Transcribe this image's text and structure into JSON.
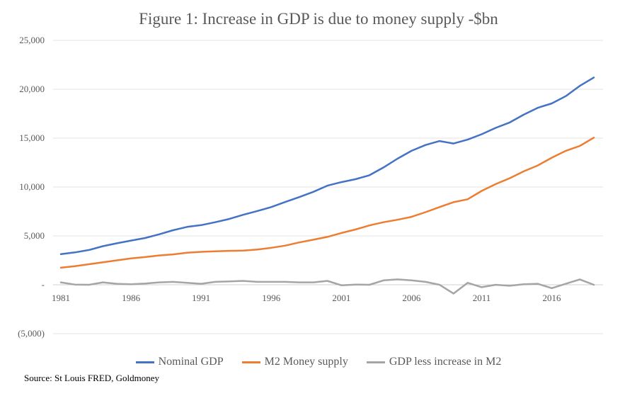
{
  "chart_data": {
    "type": "line",
    "title": "Figure 1: Increase in GDP is due to money supply -$bn",
    "xlabel": "",
    "ylabel": "",
    "ylim": [
      -5000,
      25000
    ],
    "yticks": [
      -5000,
      0,
      5000,
      10000,
      15000,
      20000,
      25000
    ],
    "ytick_labels": [
      "(5,000)",
      "-",
      "5,000",
      "10,000",
      "15,000",
      "20,000",
      "25,000"
    ],
    "xtick_labels": [
      "1981",
      "1986",
      "1991",
      "1996",
      "2001",
      "2006",
      "2011",
      "2016"
    ],
    "x": [
      1981,
      1982,
      1983,
      1984,
      1985,
      1986,
      1987,
      1988,
      1989,
      1990,
      1991,
      1992,
      1993,
      1994,
      1995,
      1996,
      1997,
      1998,
      1999,
      2000,
      2001,
      2002,
      2003,
      2004,
      2005,
      2006,
      2007,
      2008,
      2009,
      2010,
      2011,
      2012,
      2013,
      2014,
      2015,
      2016,
      2017,
      2018,
      2019
    ],
    "grid": true,
    "legend_position": "bottom",
    "series": [
      {
        "name": "Nominal GDP",
        "color": "#4472C4",
        "values": [
          3130,
          3310,
          3560,
          3950,
          4250,
          4520,
          4780,
          5160,
          5580,
          5920,
          6100,
          6400,
          6730,
          7160,
          7540,
          7950,
          8470,
          8970,
          9510,
          10140,
          10500,
          10800,
          11200,
          12000,
          12900,
          13700,
          14300,
          14700,
          14450,
          14850,
          15400,
          16050,
          16600,
          17400,
          18100,
          18550,
          19300,
          20350,
          21200
        ]
      },
      {
        "name": "M2 Money supply",
        "color": "#ED7D31",
        "values": [
          1750,
          1900,
          2100,
          2300,
          2500,
          2700,
          2830,
          3000,
          3110,
          3280,
          3370,
          3420,
          3470,
          3500,
          3600,
          3780,
          4010,
          4330,
          4610,
          4900,
          5300,
          5650,
          6070,
          6400,
          6650,
          6950,
          7430,
          7950,
          8450,
          8750,
          9600,
          10300,
          10900,
          11600,
          12200,
          13000,
          13700,
          14200,
          15050
        ]
      },
      {
        "name": "GDP less increase in M2",
        "color": "#A5A5A5",
        "values": [
          250,
          20,
          0,
          250,
          100,
          50,
          120,
          250,
          300,
          200,
          100,
          300,
          350,
          400,
          300,
          300,
          300,
          250,
          250,
          400,
          -50,
          20,
          0,
          450,
          550,
          450,
          300,
          0,
          -900,
          200,
          -250,
          0,
          -100,
          50,
          100,
          -350,
          100,
          550,
          0
        ]
      }
    ]
  },
  "source_text": "Source: St Louis FRED, Goldmoney"
}
